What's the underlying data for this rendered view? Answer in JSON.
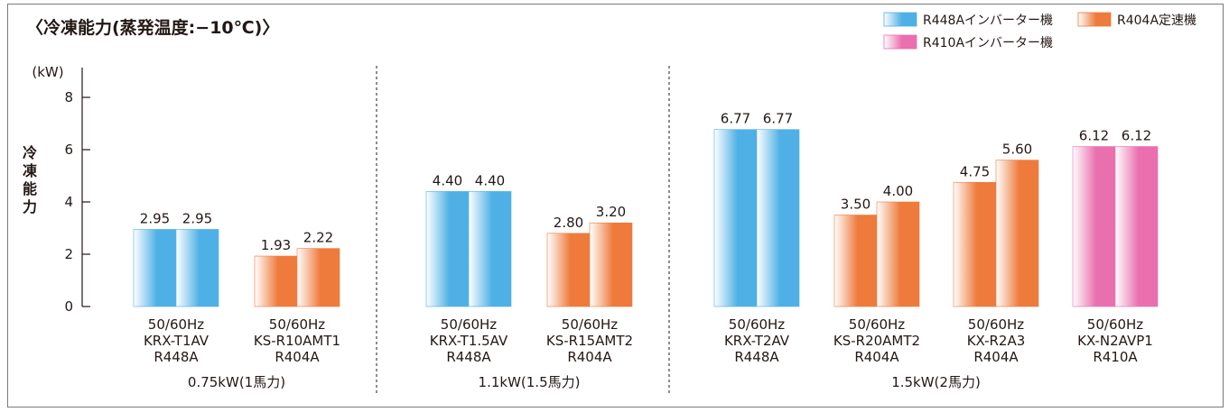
{
  "chart_data": {
    "type": "bar",
    "title": "〈冷凍能力(蒸発温度:−10℃)〉",
    "ylabel": "冷凍能力",
    "yunit": "(kW)",
    "ylim": [
      0,
      8
    ],
    "yticks": [
      "0",
      "2",
      "4",
      "6",
      "8"
    ],
    "grid": false,
    "legend_position": "top-right",
    "series_styles": [
      {
        "name": "R448Aインバーター機",
        "key": "r448a",
        "color": "#4fb0e6"
      },
      {
        "name": "R404A定速機",
        "key": "r404a",
        "color": "#ee7a3c"
      },
      {
        "name": "R410Aインバーター機",
        "key": "r410a",
        "color": "#ea6fae"
      }
    ],
    "groups": [
      {
        "label": "0.75kW(1馬力)",
        "models": [
          {
            "freq": "50/60Hz",
            "model": "KRX-T1AV",
            "refrigerant": "R448A",
            "series": "r448a",
            "values": [
              2.95,
              2.95
            ],
            "labels": [
              "2.95",
              "2.95"
            ]
          },
          {
            "freq": "50/60Hz",
            "model": "KS-R10AMT1",
            "refrigerant": "R404A",
            "series": "r404a",
            "values": [
              1.93,
              2.22
            ],
            "labels": [
              "1.93",
              "2.22"
            ]
          }
        ]
      },
      {
        "label": "1.1kW(1.5馬力)",
        "models": [
          {
            "freq": "50/60Hz",
            "model": "KRX-T1.5AV",
            "refrigerant": "R448A",
            "series": "r448a",
            "values": [
              4.4,
              4.4
            ],
            "labels": [
              "4.40",
              "4.40"
            ]
          },
          {
            "freq": "50/60Hz",
            "model": "KS-R15AMT2",
            "refrigerant": "R404A",
            "series": "r404a",
            "values": [
              2.8,
              3.2
            ],
            "labels": [
              "2.80",
              "3.20"
            ]
          }
        ]
      },
      {
        "label": "1.5kW(2馬力)",
        "models": [
          {
            "freq": "50/60Hz",
            "model": "KRX-T2AV",
            "refrigerant": "R448A",
            "series": "r448a",
            "values": [
              6.77,
              6.77
            ],
            "labels": [
              "6.77",
              "6.77"
            ]
          },
          {
            "freq": "50/60Hz",
            "model": "KS-R20AMT2",
            "refrigerant": "R404A",
            "series": "r404a",
            "values": [
              3.5,
              4.0
            ],
            "labels": [
              "3.50",
              "4.00"
            ]
          },
          {
            "freq": "50/60Hz",
            "model": "KX-R2A3",
            "refrigerant": "R404A",
            "series": "r404a",
            "values": [
              4.75,
              5.6
            ],
            "labels": [
              "4.75",
              "5.60"
            ]
          },
          {
            "freq": "50/60Hz",
            "model": "KX-N2AVP1",
            "refrigerant": "R410A",
            "series": "r410a",
            "values": [
              6.12,
              6.12
            ],
            "labels": [
              "6.12",
              "6.12"
            ]
          }
        ]
      }
    ]
  }
}
